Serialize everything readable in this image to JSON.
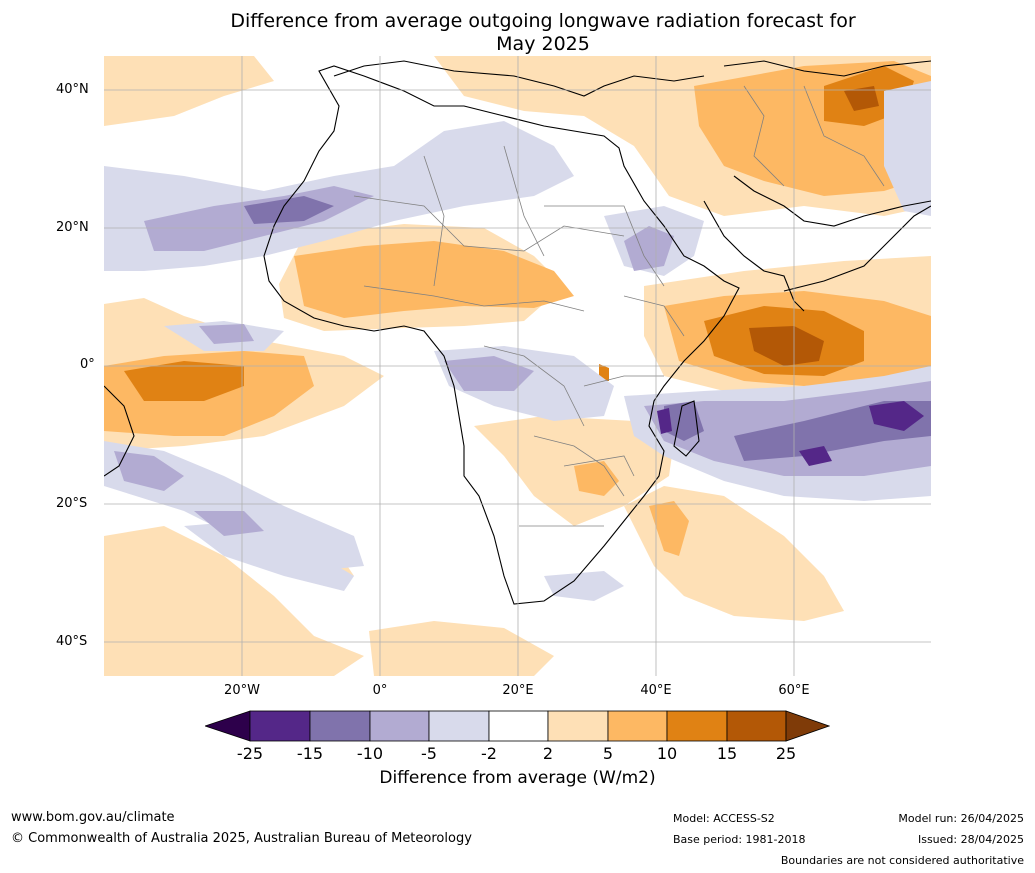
{
  "title_line1": "Difference from average outgoing longwave radiation forecast for",
  "title_line2": "May 2025",
  "map": {
    "lat_labels": [
      "40°N",
      "20°N",
      "0°",
      "20°S",
      "40°S"
    ],
    "lon_labels": [
      "20°W",
      "0°",
      "20°E",
      "40°E",
      "60°E"
    ],
    "extent": {
      "lon_min": -40,
      "lon_max": 80,
      "lat_min": -45,
      "lat_max": 45
    }
  },
  "colorbar": {
    "ticks": [
      "-25",
      "-15",
      "-10",
      "-5",
      "-2",
      "2",
      "5",
      "10",
      "15",
      "25"
    ],
    "colors": [
      "#2d004b",
      "#542788",
      "#8073ac",
      "#b2abd2",
      "#d8daeb",
      "#ffffff",
      "#fee0b6",
      "#fdb863",
      "#e08214",
      "#b35806",
      "#7f3b08"
    ],
    "label": "Difference from average (W/m2)"
  },
  "footer": {
    "url": "www.bom.gov.au/climate",
    "copyright": "© Commonwealth of Australia 2025, Australian Bureau of Meteorology",
    "model": "Model: ACCESS-S2",
    "base_period": "Base period: 1981-2018",
    "model_run": "Model run: 26/04/2025",
    "issued": "Issued: 28/04/2025",
    "disclaimer": "Boundaries are not considered authoritative"
  }
}
